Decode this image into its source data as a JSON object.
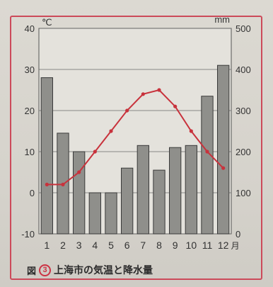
{
  "chart_data": {
    "type": "bar+line",
    "title": "上海市の気温と降水量",
    "figure_number": "3",
    "figure_prefix": "図",
    "categories": [
      "1",
      "2",
      "3",
      "4",
      "5",
      "6",
      "7",
      "8",
      "9",
      "10",
      "11",
      "12"
    ],
    "month_suffix": "月",
    "series": [
      {
        "kind": "bar",
        "axis": "right",
        "unit": "mm",
        "values": [
          380,
          245,
          200,
          100,
          100,
          160,
          215,
          155,
          210,
          215,
          335,
          410
        ]
      },
      {
        "kind": "line",
        "axis": "left",
        "unit": "℃",
        "values": [
          2,
          2,
          5,
          10,
          15,
          20,
          24,
          25,
          21,
          15,
          10,
          6
        ]
      }
    ],
    "left_axis": {
      "unit": "℃",
      "ylim": [
        -10,
        40
      ],
      "ticks": [
        "40",
        "30",
        "20",
        "10",
        "0",
        "-10"
      ]
    },
    "right_axis": {
      "unit": "mm",
      "ylim": [
        0,
        500
      ],
      "ticks": [
        "500",
        "400",
        "300",
        "200",
        "100",
        "0"
      ]
    },
    "grid": true,
    "colors": {
      "bar": "#8f8f8b",
      "line": "#c8323c",
      "frame": "#cc4a5a"
    }
  }
}
